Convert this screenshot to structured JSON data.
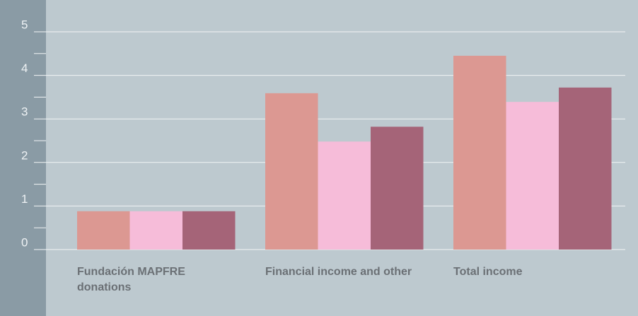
{
  "chart_data": {
    "type": "bar",
    "categories": [
      "Fundación MAPFRE donations",
      "Financial income and other",
      "Total income"
    ],
    "series": [
      {
        "color": "#dc9892",
        "values": [
          0.88,
          3.59,
          4.45
        ]
      },
      {
        "color": "#f6bcd9",
        "values": [
          0.88,
          2.48,
          3.39
        ]
      },
      {
        "color": "#a56478",
        "values": [
          0.88,
          2.82,
          3.72
        ]
      }
    ],
    "ylim": [
      0,
      5
    ],
    "yticks": [
      0,
      1,
      2,
      3,
      4,
      5
    ],
    "yminorticks": [
      0.5,
      1.5,
      2.5,
      3.5,
      4.5
    ],
    "grid": true
  }
}
